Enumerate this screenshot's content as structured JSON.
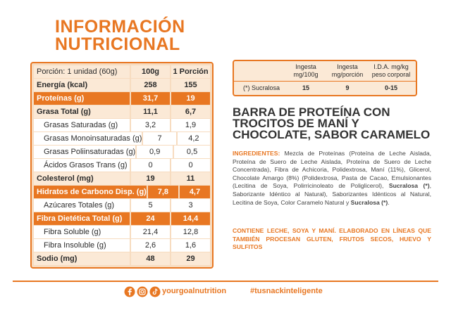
{
  "header": {
    "title_line1": "INFORMACIÓN",
    "title_line2": "NUTRICIONAL"
  },
  "nutrition_table": {
    "header": [
      "Porción: 1 unidad (60g)",
      "100g",
      "1 Porción"
    ],
    "rows": [
      [
        "Energía (kcal)",
        "258",
        "155"
      ],
      [
        "Proteínas (g)",
        "31,7",
        "19"
      ],
      [
        "Grasa Total (g)",
        "11,1",
        "6,7"
      ],
      [
        "Grasas Saturadas (g)",
        "3,2",
        "1,9"
      ],
      [
        "Grasas Monoinsaturadas (g)",
        "7",
        "4,2"
      ],
      [
        "Grasas Poliinsaturadas (g)",
        "0,9",
        "0,5"
      ],
      [
        "Ácidos Grasos Trans (g)",
        "0",
        "0"
      ],
      [
        "Colesterol (mg)",
        "19",
        "11"
      ],
      [
        "Hidratos de Carbono Disp. (g)",
        "7,8",
        "4,7"
      ],
      [
        "Azúcares Totales (g)",
        "5",
        "3"
      ],
      [
        "Fibra Dietética Total (g)",
        "24",
        "14,4"
      ],
      [
        "Fibra Soluble (g)",
        "21,4",
        "12,8"
      ],
      [
        "Fibra Insoluble (g)",
        "2,6",
        "1,6"
      ],
      [
        "Sodio (mg)",
        "48",
        "29"
      ]
    ]
  },
  "sweetener_table": {
    "header": [
      [
        "Ingesta",
        "mg/100g"
      ],
      [
        "Ingesta",
        "mg/porción"
      ],
      [
        "I.D.A. mg/kg",
        "peso corporal"
      ]
    ],
    "row": [
      "(*) Sucralosa",
      "15",
      "9",
      "0-15"
    ]
  },
  "product_title": "BARRA DE PROTEÍNA CON TROCITOS DE MANÍ Y CHOCOLATE, SABOR CARAMELO",
  "ingredients": {
    "label": "INGREDIENTES:",
    "text1": "Mezcla de Proteínas (Proteína de Leche Aislada, Proteína de Suero de Leche Aislada, Proteína de Suero de Leche Concentrada), Fibra de Achicoria, Polidextrosa, Maní (11%), Glicerol, Chocolate Amargo (8%) (Polidextrosa, Pasta de Cacao, Emulsionantes (Lecitina de Soya, Polirricinoleato de Poliglicerol),",
    "bold1": "Sucralosa (*)",
    "text2": ", Saborizante Idéntico al Natural), Saborizantes Idénticos al Natural, Lecitina de Soya, Color Caramelo Natural y",
    "bold2": "Sucralosa (*)",
    "text3": "."
  },
  "allergens": "CONTIENE LECHE, SOYA Y MANÍ. ELABORADO EN LÍNEAS QUE TAMBIÉN PROCESAN GLUTEN, FRUTOS SECOS, HUEVO Y SULFITOS",
  "footer": {
    "handle": "yourgoalnutrition",
    "hashtag": "#tusnackinteligente"
  }
}
